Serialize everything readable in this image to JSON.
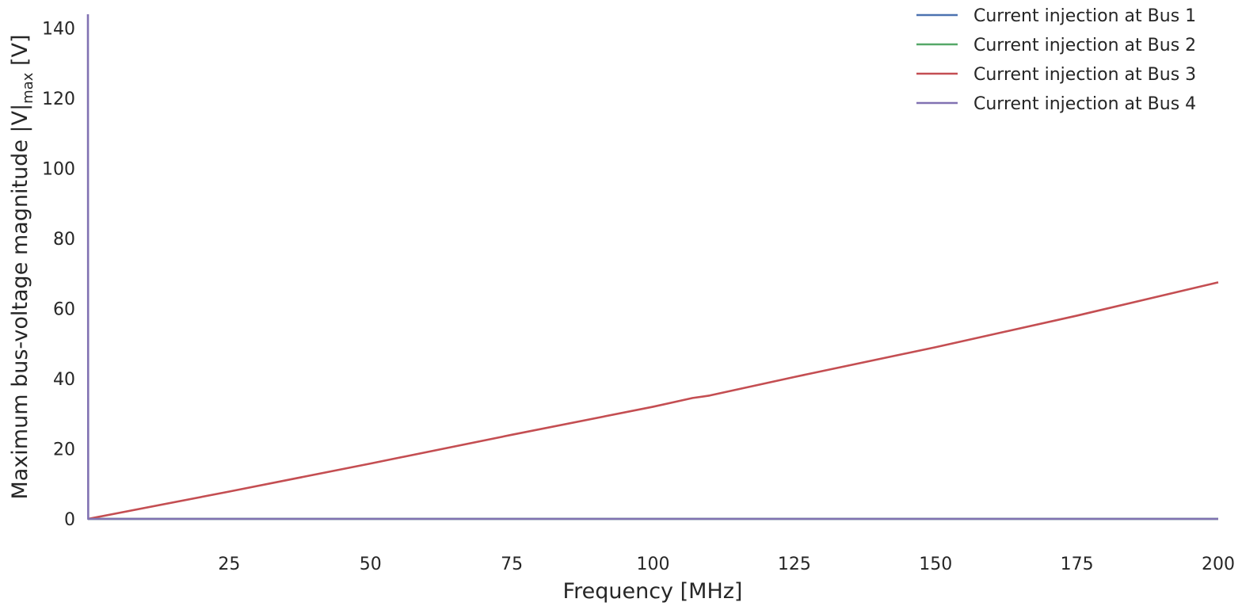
{
  "chart_data": {
    "type": "line",
    "xlabel": "Frequency [MHz]",
    "ylabel": {
      "main": "Maximum bus-voltage magnitude |V|",
      "subscript": "max",
      "unit": " [V]"
    },
    "xlim": [
      0,
      200
    ],
    "ylim": [
      0,
      144
    ],
    "x_ticks": [
      25,
      50,
      75,
      100,
      125,
      150,
      175,
      200
    ],
    "y_ticks": [
      0,
      20,
      40,
      60,
      80,
      100,
      120,
      140
    ],
    "grid": false,
    "legend_position": "top-right",
    "series": [
      {
        "name": "Current injection at Bus 1",
        "color": "#4c72b0",
        "points": [
          [
            0,
            0
          ],
          [
            200,
            0
          ]
        ]
      },
      {
        "name": "Current injection at Bus 2",
        "color": "#55a868",
        "points": [
          [
            0,
            0
          ],
          [
            200,
            0
          ]
        ]
      },
      {
        "name": "Current injection at Bus 3",
        "color": "#c44e52",
        "points": [
          [
            0,
            0
          ],
          [
            25,
            7.8
          ],
          [
            50,
            15.8
          ],
          [
            75,
            24.0
          ],
          [
            100,
            32.0
          ],
          [
            107,
            34.5
          ],
          [
            110,
            35.2
          ],
          [
            125,
            40.5
          ],
          [
            150,
            49.0
          ],
          [
            175,
            58.0
          ],
          [
            200,
            67.5
          ]
        ]
      },
      {
        "name": "Current injection at Bus 4",
        "color": "#8172b2",
        "points": [
          [
            0,
            144
          ],
          [
            0.05,
            0
          ],
          [
            200,
            0
          ]
        ]
      }
    ]
  }
}
